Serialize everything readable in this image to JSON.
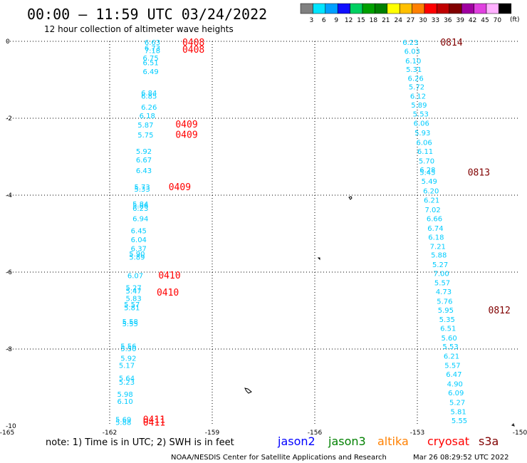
{
  "header": {
    "title": "00:00 – 11:59 UTC 03/24/2022",
    "subtitle": "12 hour collection of altimeter wave heights"
  },
  "legend": {
    "bins": [
      {
        "label": "3",
        "color": "#808080"
      },
      {
        "label": "6",
        "color": "#00e5ff"
      },
      {
        "label": "9",
        "color": "#00a0ff"
      },
      {
        "label": "12",
        "color": "#1010ff"
      },
      {
        "label": "15",
        "color": "#00d060"
      },
      {
        "label": "18",
        "color": "#00a000"
      },
      {
        "label": "21",
        "color": "#008000"
      },
      {
        "label": "24",
        "color": "#ffff00"
      },
      {
        "label": "27",
        "color": "#ffc000"
      },
      {
        "label": "30",
        "color": "#ff8000"
      },
      {
        "label": "33",
        "color": "#ff0000"
      },
      {
        "label": "36",
        "color": "#c00000"
      },
      {
        "label": "39",
        "color": "#800000"
      },
      {
        "label": "42",
        "color": "#a000a0"
      },
      {
        "label": "45",
        "color": "#e040e0"
      },
      {
        "label": "70",
        "color": "#ffb0ff"
      },
      {
        "label": "",
        "color": "#000000"
      }
    ],
    "unit": "(ft)"
  },
  "footer": {
    "note": "note: 1) Time is in UTC; 2) SWH is in feet",
    "satellites": [
      {
        "name": "jason2",
        "color": "#0000ff"
      },
      {
        "name": "jason3",
        "color": "#008000"
      },
      {
        "name": "altika",
        "color": "#ff8000"
      },
      {
        "name": "cryosat",
        "color": "#ff0000"
      },
      {
        "name": "s3a",
        "color": "#800000"
      }
    ],
    "credit": "NOAA/NESDIS Center for Satellite Applications and Research",
    "generated": "Mar 26 08:29:52 UTC 2022"
  },
  "chart_data": {
    "type": "scatter",
    "x_ticks": [
      "-165",
      "-162",
      "-159",
      "-156",
      "-153",
      "-150"
    ],
    "y_ticks": [
      "0",
      "-2",
      "-4",
      "-6",
      "-8",
      "-10"
    ],
    "xlim": [
      -165,
      -150
    ],
    "ylim": [
      -10,
      0
    ],
    "grid": true,
    "value_color": "#00ccff",
    "tracks": [
      {
        "points": [
          {
            "lon": -160.75,
            "lat": -0.02,
            "v": "6.63"
          },
          {
            "lon": -160.75,
            "lat": -0.17,
            "v": "6.73"
          },
          {
            "lon": -160.75,
            "lat": -0.23,
            "v": "7.18"
          },
          {
            "lon": -160.8,
            "lat": -0.43,
            "v": "6.75"
          },
          {
            "lon": -160.8,
            "lat": -0.55,
            "v": "6.51"
          },
          {
            "lon": -160.8,
            "lat": -0.78,
            "v": "6.49"
          },
          {
            "lon": -160.85,
            "lat": -1.33,
            "v": "6.84"
          },
          {
            "lon": -160.85,
            "lat": -1.42,
            "v": "6.85"
          },
          {
            "lon": -160.85,
            "lat": -1.7,
            "v": "6.26"
          },
          {
            "lon": -160.9,
            "lat": -1.93,
            "v": "6.18"
          },
          {
            "lon": -160.95,
            "lat": -2.17,
            "v": "5.87"
          },
          {
            "lon": -160.95,
            "lat": -2.43,
            "v": "5.75"
          },
          {
            "lon": -161.0,
            "lat": -2.85,
            "v": "5.92"
          },
          {
            "lon": -161.0,
            "lat": -3.07,
            "v": "6.67"
          },
          {
            "lon": -161.0,
            "lat": -3.35,
            "v": "6.43"
          },
          {
            "lon": -161.05,
            "lat": -3.78,
            "v": "5.73"
          },
          {
            "lon": -161.05,
            "lat": -3.83,
            "v": "5.33"
          },
          {
            "lon": -161.1,
            "lat": -4.22,
            "v": "5.84"
          },
          {
            "lon": -161.1,
            "lat": -4.27,
            "v": "5.86"
          },
          {
            "lon": -161.1,
            "lat": -4.33,
            "v": "6.23"
          },
          {
            "lon": -161.1,
            "lat": -4.6,
            "v": "6.94"
          },
          {
            "lon": -161.15,
            "lat": -4.92,
            "v": "6.45"
          },
          {
            "lon": -161.15,
            "lat": -5.15,
            "v": "6.04"
          },
          {
            "lon": -161.15,
            "lat": -5.38,
            "v": "6.37"
          },
          {
            "lon": -161.2,
            "lat": -5.52,
            "v": "5.90"
          },
          {
            "lon": -161.2,
            "lat": -5.6,
            "v": "5.89"
          },
          {
            "lon": -161.25,
            "lat": -6.08,
            "v": "6.07"
          },
          {
            "lon": -161.3,
            "lat": -6.4,
            "v": "5.27"
          },
          {
            "lon": -161.3,
            "lat": -6.48,
            "v": "5.47"
          },
          {
            "lon": -161.3,
            "lat": -6.68,
            "v": "5.83"
          },
          {
            "lon": -161.35,
            "lat": -6.83,
            "v": "5.57"
          },
          {
            "lon": -161.35,
            "lat": -6.92,
            "v": "5.81"
          },
          {
            "lon": -161.4,
            "lat": -7.28,
            "v": "5.58"
          },
          {
            "lon": -161.4,
            "lat": -7.33,
            "v": "5.55"
          },
          {
            "lon": -161.45,
            "lat": -7.92,
            "v": "5.56"
          },
          {
            "lon": -161.45,
            "lat": -7.98,
            "v": "5.50"
          },
          {
            "lon": -161.45,
            "lat": -8.23,
            "v": "5.92"
          },
          {
            "lon": -161.5,
            "lat": -8.42,
            "v": "5.17"
          },
          {
            "lon": -161.5,
            "lat": -8.75,
            "v": "5.64"
          },
          {
            "lon": -161.5,
            "lat": -8.85,
            "v": "5.23"
          },
          {
            "lon": -161.55,
            "lat": -9.17,
            "v": "5.98"
          },
          {
            "lon": -161.55,
            "lat": -9.35,
            "v": "6.10"
          },
          {
            "lon": -161.6,
            "lat": -9.82,
            "v": "5.69"
          },
          {
            "lon": -161.6,
            "lat": -9.9,
            "v": "5.88"
          }
        ],
        "time_labels": [
          {
            "lon": -159.55,
            "lat": -0.02,
            "text": "0408",
            "color": "#ff0000"
          },
          {
            "lon": -159.55,
            "lat": -0.2,
            "text": "0408",
            "color": "#ff0000"
          },
          {
            "lon": -159.75,
            "lat": -2.15,
            "text": "0409",
            "color": "#ff0000"
          },
          {
            "lon": -159.75,
            "lat": -2.42,
            "text": "0409",
            "color": "#ff0000"
          },
          {
            "lon": -159.95,
            "lat": -3.78,
            "text": "0409",
            "color": "#ff0000"
          },
          {
            "lon": -160.25,
            "lat": -6.07,
            "text": "0410",
            "color": "#ff0000"
          },
          {
            "lon": -160.3,
            "lat": -6.52,
            "text": "0410",
            "color": "#ff0000"
          },
          {
            "lon": -160.7,
            "lat": -9.82,
            "text": "0411",
            "color": "#ff0000"
          },
          {
            "lon": -160.7,
            "lat": -9.9,
            "text": "0411",
            "color": "#ff0000"
          }
        ]
      },
      {
        "points": [
          {
            "lon": -153.2,
            "lat": -0.02,
            "v": "6.23"
          },
          {
            "lon": -153.15,
            "lat": -0.25,
            "v": "6.03"
          },
          {
            "lon": -153.12,
            "lat": -0.5,
            "v": "6.10"
          },
          {
            "lon": -153.1,
            "lat": -0.72,
            "v": "5.31"
          },
          {
            "lon": -153.05,
            "lat": -0.95,
            "v": "6.26"
          },
          {
            "lon": -153.02,
            "lat": -1.18,
            "v": "5.72"
          },
          {
            "lon": -152.98,
            "lat": -1.42,
            "v": "6.12"
          },
          {
            "lon": -152.95,
            "lat": -1.65,
            "v": "5.89"
          },
          {
            "lon": -152.9,
            "lat": -1.88,
            "v": "5.53"
          },
          {
            "lon": -152.88,
            "lat": -2.12,
            "v": "6.06"
          },
          {
            "lon": -152.85,
            "lat": -2.37,
            "v": "5.93"
          },
          {
            "lon": -152.8,
            "lat": -2.62,
            "v": "6.06"
          },
          {
            "lon": -152.77,
            "lat": -2.85,
            "v": "6.11"
          },
          {
            "lon": -152.73,
            "lat": -3.1,
            "v": "5.70"
          },
          {
            "lon": -152.7,
            "lat": -3.33,
            "v": "6.28"
          },
          {
            "lon": -152.7,
            "lat": -3.4,
            "v": "5.45"
          },
          {
            "lon": -152.65,
            "lat": -3.63,
            "v": "5.49"
          },
          {
            "lon": -152.6,
            "lat": -3.88,
            "v": "6.20"
          },
          {
            "lon": -152.58,
            "lat": -4.12,
            "v": "6.21"
          },
          {
            "lon": -152.55,
            "lat": -4.37,
            "v": "7.02"
          },
          {
            "lon": -152.5,
            "lat": -4.6,
            "v": "6.66"
          },
          {
            "lon": -152.47,
            "lat": -4.85,
            "v": "6.74"
          },
          {
            "lon": -152.45,
            "lat": -5.08,
            "v": "6.18"
          },
          {
            "lon": -152.4,
            "lat": -5.32,
            "v": "7.21"
          },
          {
            "lon": -152.37,
            "lat": -5.55,
            "v": "5.88"
          },
          {
            "lon": -152.33,
            "lat": -5.8,
            "v": "5.27"
          },
          {
            "lon": -152.3,
            "lat": -6.03,
            "v": "7.00"
          },
          {
            "lon": -152.27,
            "lat": -6.27,
            "v": "5.57"
          },
          {
            "lon": -152.23,
            "lat": -6.5,
            "v": "4.73"
          },
          {
            "lon": -152.2,
            "lat": -6.75,
            "v": "5.76"
          },
          {
            "lon": -152.17,
            "lat": -6.98,
            "v": "5.95"
          },
          {
            "lon": -152.13,
            "lat": -7.22,
            "v": "5.35"
          },
          {
            "lon": -152.1,
            "lat": -7.45,
            "v": "6.51"
          },
          {
            "lon": -152.07,
            "lat": -7.7,
            "v": "5.60"
          },
          {
            "lon": -152.03,
            "lat": -7.93,
            "v": "5.53"
          },
          {
            "lon": -152.0,
            "lat": -8.18,
            "v": "6.21"
          },
          {
            "lon": -151.97,
            "lat": -8.42,
            "v": "5.57"
          },
          {
            "lon": -151.93,
            "lat": -8.65,
            "v": "6.47"
          },
          {
            "lon": -151.9,
            "lat": -8.9,
            "v": "4.90"
          },
          {
            "lon": -151.87,
            "lat": -9.13,
            "v": "6.09"
          },
          {
            "lon": -151.83,
            "lat": -9.38,
            "v": "5.27"
          },
          {
            "lon": -151.8,
            "lat": -9.62,
            "v": "5.81"
          },
          {
            "lon": -151.77,
            "lat": -9.85,
            "v": "5.55"
          }
        ],
        "time_labels": [
          {
            "lon": -152.0,
            "lat": -0.02,
            "text": "0814",
            "color": "#800000"
          },
          {
            "lon": -151.2,
            "lat": -3.4,
            "text": "0813",
            "color": "#800000"
          },
          {
            "lon": -150.6,
            "lat": -6.98,
            "text": "0812",
            "color": "#800000"
          }
        ]
      }
    ]
  }
}
